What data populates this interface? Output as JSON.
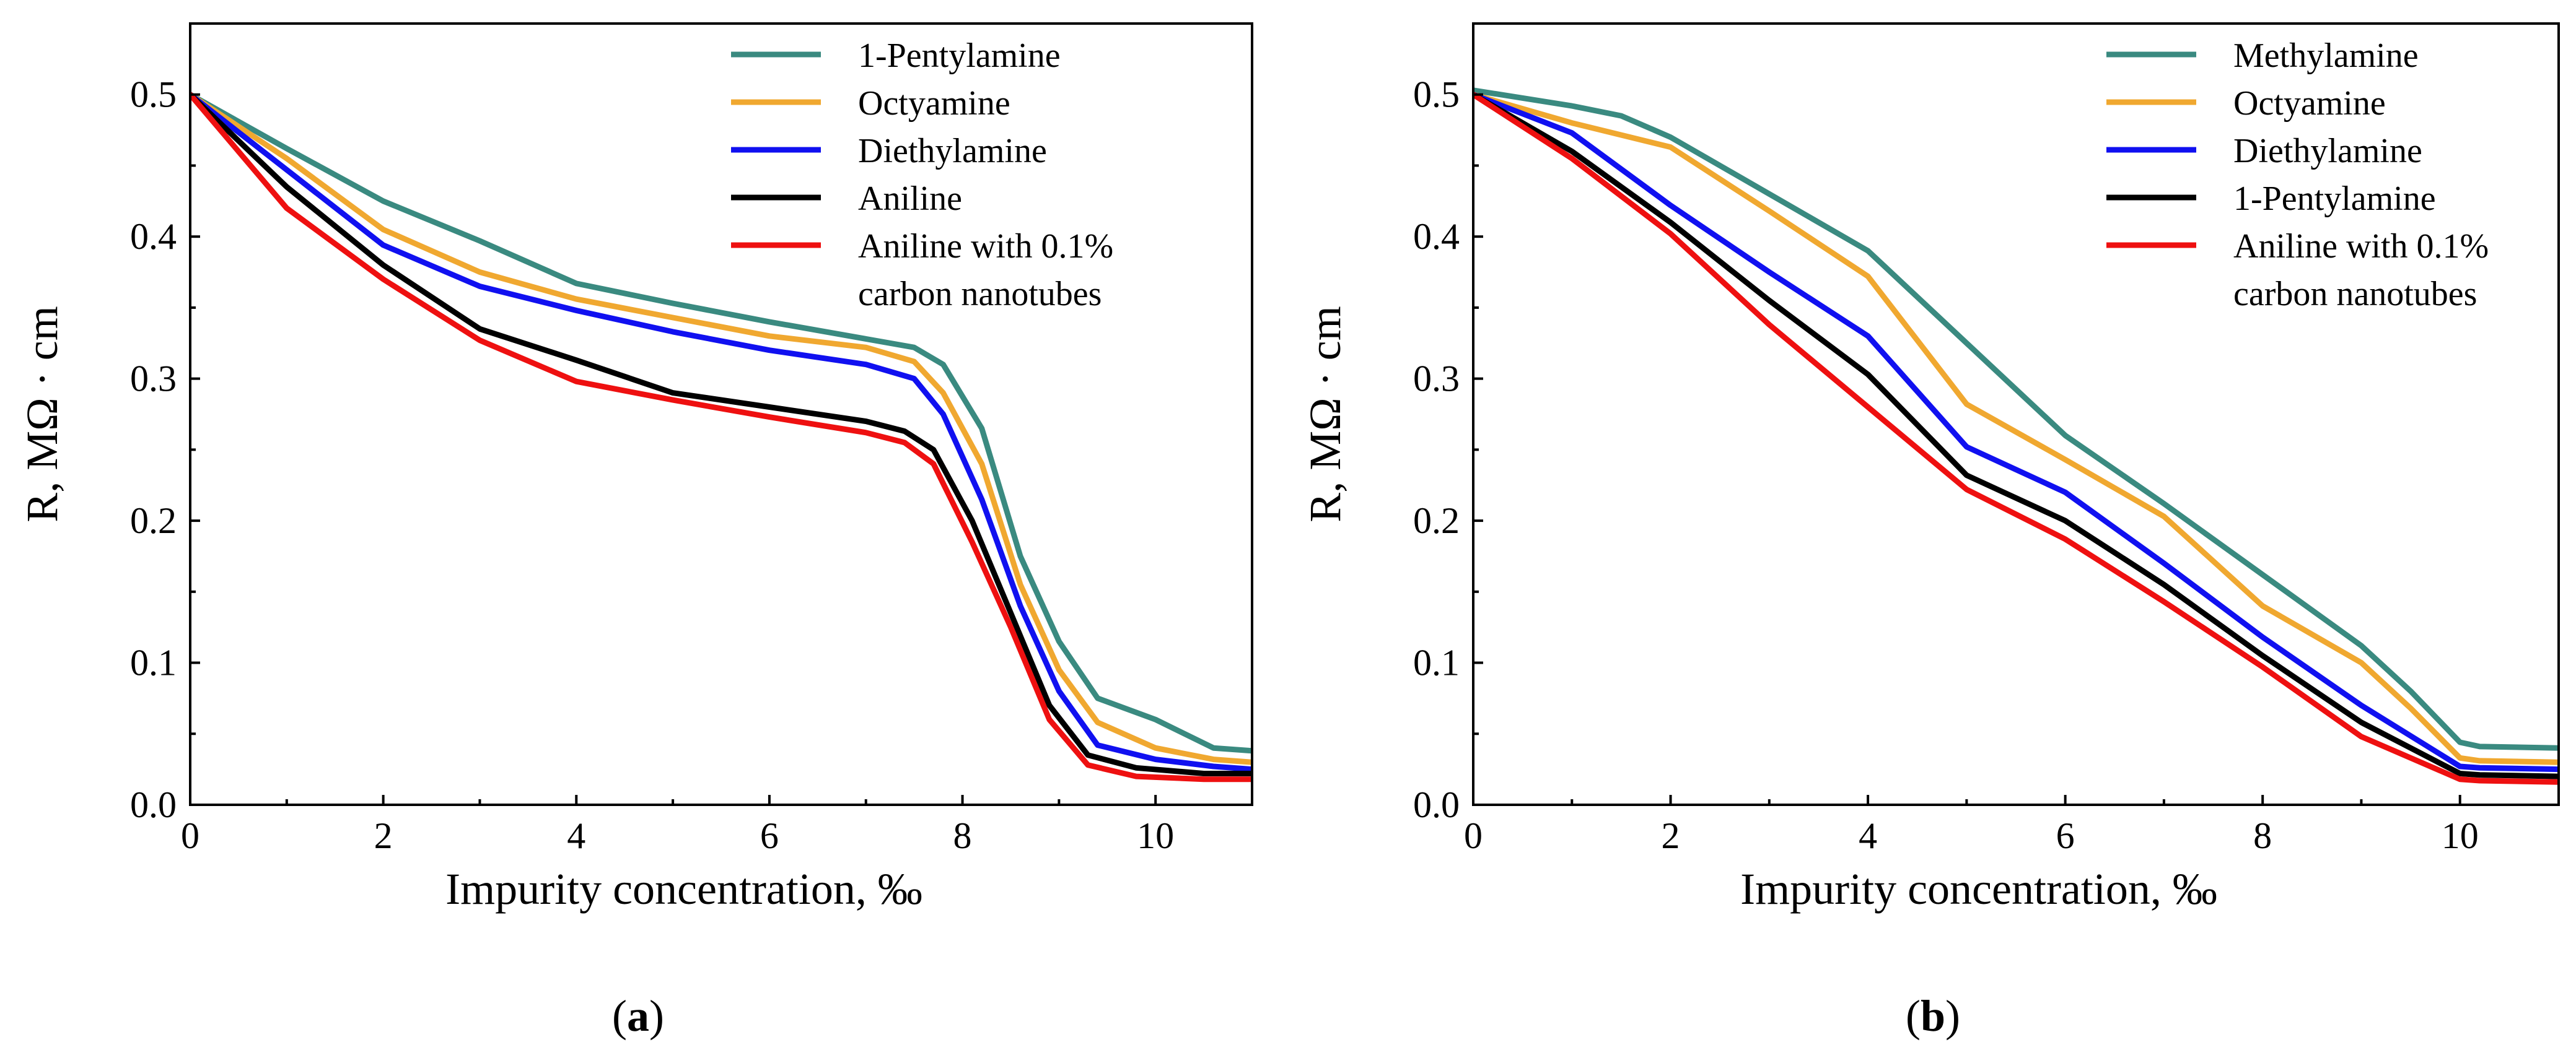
{
  "colors": {
    "teal": "#3a8a80",
    "orange": "#f0a830",
    "blue": "#1010f0",
    "black": "#000000",
    "red": "#ee1010"
  },
  "chart_data": [
    {
      "id": "a",
      "type": "line",
      "panel_label_prefix": "(",
      "panel_label_letter": "a",
      "panel_label_suffix": ")",
      "xlabel": "Impurity concentration, ‰",
      "ylabel": "R, MΩ · cm",
      "xlim": [
        0,
        11
      ],
      "ylim": [
        0,
        0.55
      ],
      "xticks": [
        0,
        2,
        4,
        6,
        8,
        10
      ],
      "xtick_labels": [
        "0",
        "2",
        "4",
        "6",
        "8",
        "10"
      ],
      "yticks": [
        0.0,
        0.1,
        0.2,
        0.3,
        0.4,
        0.5
      ],
      "ytick_labels": [
        "0.0",
        "0.1",
        "0.2",
        "0.3",
        "0.4",
        "0.5"
      ],
      "legend_position": "top-right",
      "series": [
        {
          "name": "1-Pentylamine",
          "color_key": "teal",
          "x": [
            0,
            1,
            2,
            3,
            4,
            5,
            6,
            7,
            7.5,
            7.8,
            8.2,
            8.6,
            9.0,
            9.4,
            10,
            10.6,
            11
          ],
          "y": [
            0.5,
            0.462,
            0.425,
            0.397,
            0.367,
            0.353,
            0.34,
            0.328,
            0.322,
            0.31,
            0.265,
            0.175,
            0.115,
            0.075,
            0.06,
            0.04,
            0.038
          ]
        },
        {
          "name": "Octyamine",
          "color_key": "orange",
          "x": [
            0,
            1,
            2,
            3,
            4,
            5,
            6,
            7,
            7.5,
            7.8,
            8.2,
            8.6,
            9.0,
            9.4,
            10,
            10.6,
            11
          ],
          "y": [
            0.5,
            0.455,
            0.405,
            0.375,
            0.356,
            0.343,
            0.33,
            0.322,
            0.312,
            0.29,
            0.24,
            0.155,
            0.095,
            0.058,
            0.04,
            0.032,
            0.03
          ]
        },
        {
          "name": "Diethylamine",
          "color_key": "blue",
          "x": [
            0,
            1,
            2,
            3,
            4,
            5,
            6,
            7,
            7.5,
            7.8,
            8.2,
            8.6,
            9.0,
            9.4,
            10,
            10.6,
            11
          ],
          "y": [
            0.5,
            0.447,
            0.394,
            0.365,
            0.348,
            0.333,
            0.32,
            0.31,
            0.3,
            0.275,
            0.215,
            0.14,
            0.08,
            0.042,
            0.032,
            0.027,
            0.025
          ]
        },
        {
          "name": "Aniline",
          "color_key": "black",
          "x": [
            0,
            1,
            2,
            3,
            4,
            5,
            6,
            7,
            7.4,
            7.7,
            8.1,
            8.5,
            8.9,
            9.3,
            9.8,
            10.5,
            11
          ],
          "y": [
            0.5,
            0.435,
            0.38,
            0.335,
            0.313,
            0.29,
            0.28,
            0.27,
            0.263,
            0.25,
            0.2,
            0.135,
            0.07,
            0.035,
            0.026,
            0.022,
            0.022
          ]
        },
        {
          "name": "Aniline with 0.1% carbon nanotubes",
          "name_line1": "Aniline with 0.1%",
          "name_line2": "carbon nanotubes",
          "color_key": "red",
          "x": [
            0,
            1,
            2,
            3,
            4,
            5,
            6,
            7,
            7.4,
            7.7,
            8.1,
            8.5,
            8.9,
            9.3,
            9.8,
            10.5,
            11
          ],
          "y": [
            0.5,
            0.42,
            0.37,
            0.327,
            0.298,
            0.285,
            0.273,
            0.262,
            0.255,
            0.24,
            0.185,
            0.125,
            0.06,
            0.028,
            0.02,
            0.018,
            0.018
          ]
        }
      ]
    },
    {
      "id": "b",
      "type": "line",
      "panel_label_prefix": "(",
      "panel_label_letter": "b",
      "panel_label_suffix": ")",
      "xlabel": "Impurity concentration, ‰",
      "ylabel": "R, MΩ · cm",
      "xlim": [
        0,
        11
      ],
      "ylim": [
        0,
        0.55
      ],
      "xticks": [
        0,
        2,
        4,
        6,
        8,
        10
      ],
      "xtick_labels": [
        "0",
        "2",
        "4",
        "6",
        "8",
        "10"
      ],
      "yticks": [
        0.0,
        0.1,
        0.2,
        0.3,
        0.4,
        0.5
      ],
      "ytick_labels": [
        "0.0",
        "0.1",
        "0.2",
        "0.3",
        "0.4",
        "0.5"
      ],
      "legend_position": "top-right",
      "series": [
        {
          "name": "Methylamine",
          "color_key": "teal",
          "x": [
            0,
            1,
            1.5,
            2,
            3,
            4,
            5,
            6,
            7,
            8,
            9,
            9.5,
            10,
            10.2,
            11
          ],
          "y": [
            0.503,
            0.492,
            0.485,
            0.47,
            0.43,
            0.39,
            0.325,
            0.26,
            0.212,
            0.162,
            0.112,
            0.08,
            0.044,
            0.041,
            0.04
          ]
        },
        {
          "name": "Octyamine",
          "color_key": "orange",
          "x": [
            0,
            1,
            2,
            3,
            4,
            5,
            6,
            7,
            8,
            9,
            9.5,
            10,
            10.2,
            11
          ],
          "y": [
            0.5,
            0.48,
            0.463,
            0.418,
            0.372,
            0.282,
            0.243,
            0.203,
            0.14,
            0.1,
            0.068,
            0.033,
            0.031,
            0.03
          ]
        },
        {
          "name": "Diethylamine",
          "color_key": "blue",
          "x": [
            0,
            1,
            2,
            3,
            4,
            5,
            6,
            7,
            8,
            9,
            10,
            10.2,
            11
          ],
          "y": [
            0.5,
            0.473,
            0.422,
            0.375,
            0.33,
            0.252,
            0.22,
            0.17,
            0.118,
            0.07,
            0.027,
            0.026,
            0.025
          ]
        },
        {
          "name": "1-Pentylamine",
          "color_key": "black",
          "x": [
            0,
            1,
            2,
            3,
            4,
            5,
            6,
            7,
            8,
            9,
            10,
            10.2,
            11
          ],
          "y": [
            0.5,
            0.46,
            0.41,
            0.355,
            0.303,
            0.232,
            0.2,
            0.155,
            0.105,
            0.058,
            0.022,
            0.021,
            0.02
          ]
        },
        {
          "name": "Aniline with 0.1% carbon nanotubes",
          "name_line1": "Aniline with 0.1%",
          "name_line2": "carbon nanotubes",
          "color_key": "red",
          "x": [
            0,
            1,
            2,
            3,
            4,
            5,
            6,
            7,
            8,
            9,
            10,
            10.2,
            11
          ],
          "y": [
            0.5,
            0.455,
            0.402,
            0.338,
            0.28,
            0.222,
            0.187,
            0.143,
            0.097,
            0.048,
            0.018,
            0.017,
            0.016
          ]
        }
      ]
    }
  ]
}
